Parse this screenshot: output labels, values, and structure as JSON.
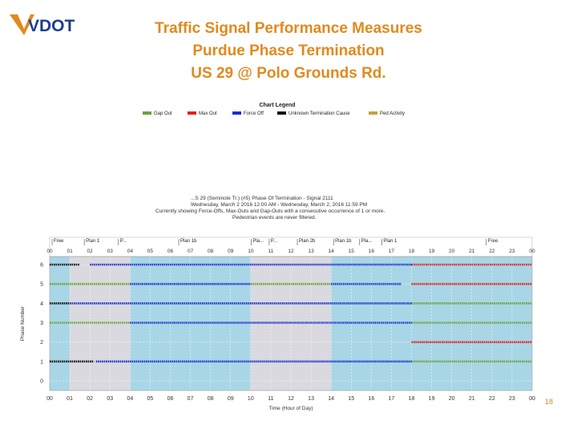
{
  "header": {
    "logo_text": "VDOT",
    "title_line1": "Traffic Signal Performance Measures",
    "title_line2": "Purdue Phase Termination",
    "title_line3": "US 29 @ Polo Grounds Rd."
  },
  "legend": {
    "title": "Chart Legend",
    "items": [
      {
        "label": "Gap Out",
        "color": "#6aa23c"
      },
      {
        "label": "Max Out",
        "color": "#e02020"
      },
      {
        "label": "Force Off",
        "color": "#1a2fd0"
      },
      {
        "label": "Unknown Termination Cause",
        "color": "#111111"
      },
      {
        "label": "Ped Activity",
        "color": "#c8a040"
      }
    ]
  },
  "subtitle": {
    "line1": "...S 29 (Seminole Tr.) (#5) Phase Of Termination - Signal 2111",
    "line2": "Wednesday, March 2 2016 12:00 AM - Wednesday, March 2, 2016 11:59 PM",
    "line3": "Currently showing Force-Offs, Max-Outs and Gap-Outs with a consecutive occurrence of 1 or more.",
    "line4": "Pedestrian events are never filtered."
  },
  "chart_data": {
    "type": "scatter",
    "xlabel": "Time (Hour of Day)",
    "ylabel": "Phase Number",
    "xlim": [
      0,
      24
    ],
    "ylim": [
      0,
      6
    ],
    "x_ticks": [
      "00",
      "01",
      "02",
      "03",
      "04",
      "05",
      "06",
      "07",
      "08",
      "09",
      "10",
      "11",
      "12",
      "13",
      "14",
      "15",
      "16",
      "17",
      "18",
      "19",
      "20",
      "21",
      "22",
      "23",
      "00"
    ],
    "y_ticks": [
      "0",
      "1",
      "2",
      "3",
      "4",
      "5",
      "6"
    ],
    "plan_labels": [
      {
        "label": "Free",
        "x": 0.2
      },
      {
        "label": "Plan 1",
        "x": 1.8
      },
      {
        "label": "P...",
        "x": 3.5
      },
      {
        "label": "Plan 1b",
        "x": 6.5
      },
      {
        "label": "Pla...",
        "x": 10.1
      },
      {
        "label": "P...",
        "x": 11.0
      },
      {
        "label": "Plan 2b",
        "x": 12.4
      },
      {
        "label": "Plan 1b",
        "x": 14.2
      },
      {
        "label": "Pla...",
        "x": 15.5
      },
      {
        "label": "Plan 1",
        "x": 16.6
      },
      {
        "label": "Free",
        "x": 21.8
      }
    ],
    "plan_bands": [
      {
        "start": 0,
        "end": 1,
        "color": "#a9d6e6"
      },
      {
        "start": 1,
        "end": 4,
        "color": "#d9d9df"
      },
      {
        "start": 4,
        "end": 10,
        "color": "#a9d6e6"
      },
      {
        "start": 10,
        "end": 14,
        "color": "#d9d9df"
      },
      {
        "start": 14,
        "end": 18,
        "color": "#a9d6e6"
      },
      {
        "start": 18,
        "end": 24,
        "color": "#a9d6e6"
      }
    ],
    "series": [
      {
        "name": "Force Off",
        "color": "#1a2fd0",
        "segments": [
          {
            "phase": 6,
            "start": 2.0,
            "end": 18.0
          },
          {
            "phase": 4,
            "start": 1.0,
            "end": 18.0
          },
          {
            "phase": 3,
            "start": 4.0,
            "end": 18.0
          },
          {
            "phase": 1,
            "start": 2.3,
            "end": 18.0
          },
          {
            "phase": 5,
            "start": 4.0,
            "end": 10.0
          },
          {
            "phase": 5,
            "start": 14.0,
            "end": 17.5
          }
        ]
      },
      {
        "name": "Gap Out",
        "color": "#6aa23c",
        "segments": [
          {
            "phase": 5,
            "start": 0.0,
            "end": 4.0
          },
          {
            "phase": 5,
            "start": 10.0,
            "end": 14.0
          },
          {
            "phase": 3,
            "start": 0.0,
            "end": 4.0
          },
          {
            "phase": 3,
            "start": 18.0,
            "end": 24.0
          },
          {
            "phase": 4,
            "start": 18.0,
            "end": 24.0
          },
          {
            "phase": 1,
            "start": 18.0,
            "end": 24.0
          }
        ]
      },
      {
        "name": "Max Out",
        "color": "#e02020",
        "segments": [
          {
            "phase": 6,
            "start": 18.0,
            "end": 24.0
          },
          {
            "phase": 5,
            "start": 18.0,
            "end": 24.0
          },
          {
            "phase": 2,
            "start": 18.0,
            "end": 24.0
          }
        ]
      },
      {
        "name": "Unknown Termination Cause",
        "color": "#111111",
        "segments": [
          {
            "phase": 6,
            "start": 0.0,
            "end": 1.5
          },
          {
            "phase": 4,
            "start": 0.0,
            "end": 1.0
          },
          {
            "phase": 1,
            "start": 0.0,
            "end": 2.2
          }
        ]
      }
    ],
    "grid": true,
    "legend_position": "top"
  },
  "page_number": "18"
}
